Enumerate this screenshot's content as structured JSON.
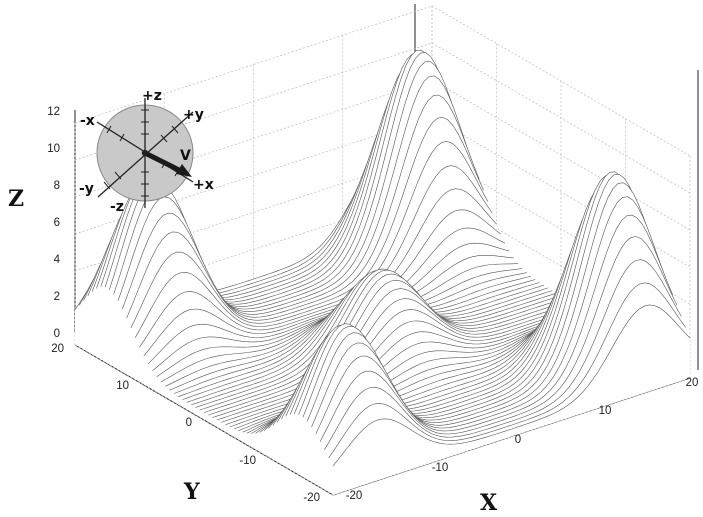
{
  "chart_data": {
    "type": "surface",
    "title": "",
    "xlabel": "X",
    "ylabel": "Y",
    "zlabel": "Z",
    "xlim": [
      -20,
      20
    ],
    "ylim": [
      -20,
      20
    ],
    "zlim": [
      0,
      12
    ],
    "x_ticks": [
      "-20",
      "-10",
      "0",
      "10",
      "20"
    ],
    "y_ticks": [
      "20",
      "10",
      "0",
      "-10",
      "-20"
    ],
    "z_ticks": [
      "0",
      "2",
      "4",
      "6",
      "8",
      "10",
      "12"
    ],
    "grid": true,
    "line_color": "#555555",
    "peaks": [
      {
        "x": 15,
        "y": 15,
        "z": 11
      },
      {
        "x": -15,
        "y": 15,
        "z": 9
      },
      {
        "x": 15,
        "y": -15,
        "z": 10.5
      },
      {
        "x": -15,
        "y": -15,
        "z": 7
      },
      {
        "x": 0,
        "y": 0,
        "z": 4.5
      }
    ]
  },
  "compass": {
    "labels": [
      "+z",
      "+y",
      "-x",
      "-y",
      "-z",
      "+x",
      "V"
    ]
  }
}
